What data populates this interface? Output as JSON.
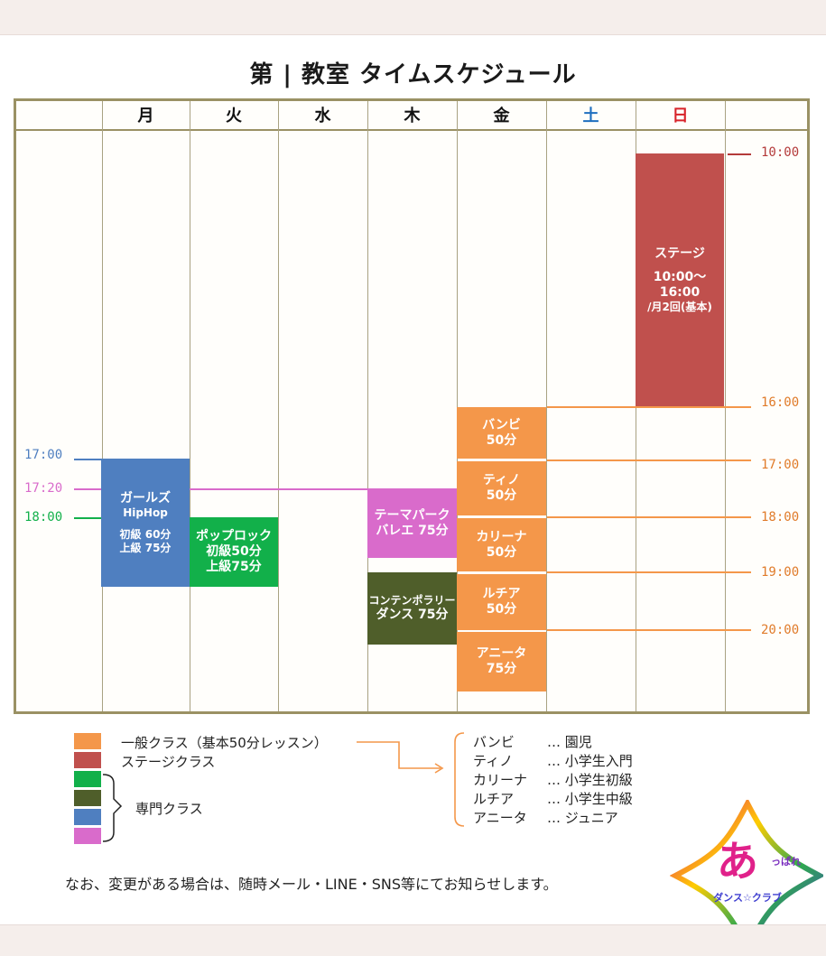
{
  "title": "第 | 教室 タイムスケジュール",
  "days": [
    {
      "label": "月",
      "color": "#111111"
    },
    {
      "label": "火",
      "color": "#111111"
    },
    {
      "label": "水",
      "color": "#111111"
    },
    {
      "label": "木",
      "color": "#111111"
    },
    {
      "label": "金",
      "color": "#111111"
    },
    {
      "label": "土",
      "color": "#1f6fbf"
    },
    {
      "label": "日",
      "color": "#d8232a"
    }
  ],
  "times": {
    "t1000": "10:00",
    "t1600": "16:00",
    "t1700": "17:00",
    "t1720": "17:20",
    "t1800": "18:00",
    "t1900": "19:00",
    "t2000": "20:00"
  },
  "colors": {
    "general": "#f4974a",
    "stage": "#c0504d",
    "green": "#12b04a",
    "olive": "#4f5e2a",
    "blue": "#4f7fc0",
    "pink": "#d96bcb",
    "grid": "#9a9164"
  },
  "classes": {
    "girls": {
      "name": "ガールズ",
      "genre": "HipHop",
      "detail1": "初級 60分",
      "detail2": "上級 75分"
    },
    "pop": {
      "name": "ポップロック",
      "detail1": "初級50分",
      "detail2": "上級75分"
    },
    "themepark": {
      "name": "テーマパーク",
      "detail1": "バレエ 75分"
    },
    "contemporary": {
      "name": "コンテンポラリー",
      "detail1": "ダンス 75分"
    },
    "bambi": {
      "name": "バンビ",
      "duration": "50分"
    },
    "tino": {
      "name": "ティノ",
      "duration": "50分"
    },
    "karina": {
      "name": "カリーナ",
      "duration": "50分"
    },
    "ruchia": {
      "name": "ルチア",
      "duration": "50分"
    },
    "anita": {
      "name": "アニータ",
      "duration": "75分"
    },
    "stage": {
      "name": "ステージ",
      "time1": "10:00～",
      "time2": "16:00",
      "note": "/月2回(基本)"
    }
  },
  "legend": {
    "general": "一般クラス（基本50分レッスン）",
    "stage": "ステージクラス",
    "special": "専門クラス",
    "levels": [
      {
        "name": "バンビ",
        "desc": "… 園児"
      },
      {
        "name": "ティノ",
        "desc": "… 小学生入門"
      },
      {
        "name": "カリーナ",
        "desc": "… 小学生初級"
      },
      {
        "name": "ルチア",
        "desc": "… 小学生中級"
      },
      {
        "name": "アニータ",
        "desc": "… ジュニア"
      }
    ]
  },
  "notice": "なお、変更がある場合は、随時メール・LINE・SNS等にてお知らせします。",
  "logo": {
    "char": "あ",
    "top_text": "っぱれ",
    "bottom_text": "ダンス☆クラブ"
  }
}
